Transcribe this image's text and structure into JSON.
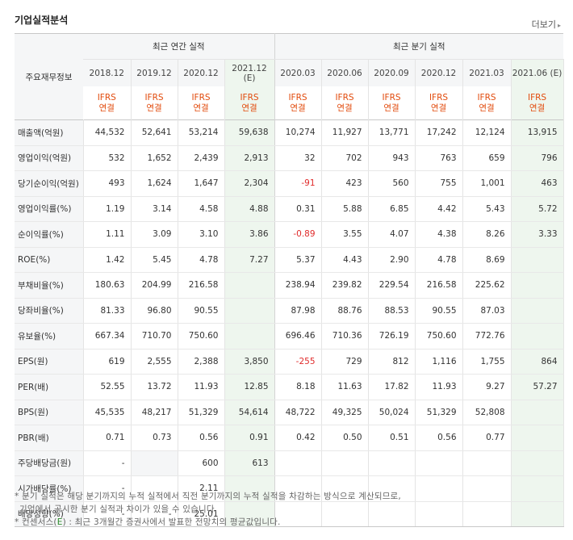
{
  "header": {
    "title": "기업실적분석",
    "more": "더보기"
  },
  "table": {
    "row_header": "주요재무정보",
    "annual_title": "최근 연간 실적",
    "quarter_title": "최근 분기 실적",
    "periods": [
      {
        "label": "2018.12",
        "est": false
      },
      {
        "label": "2019.12",
        "est": false
      },
      {
        "label": "2020.12",
        "est": false
      },
      {
        "label": "2021.12 (E)",
        "est": true
      },
      {
        "label": "2020.03",
        "est": false
      },
      {
        "label": "2020.06",
        "est": false
      },
      {
        "label": "2020.09",
        "est": false
      },
      {
        "label": "2020.12",
        "est": false
      },
      {
        "label": "2021.03",
        "est": false
      },
      {
        "label": "2021.06 (E)",
        "est": true
      }
    ],
    "ifrs_line1": "IFRS",
    "ifrs_line2": "연결",
    "rows": [
      {
        "label": "매출액(억원)",
        "values": [
          "44,532",
          "52,641",
          "53,214",
          "59,638",
          "10,274",
          "11,927",
          "13,771",
          "17,242",
          "12,124",
          "13,915"
        ]
      },
      {
        "label": "영업이익(억원)",
        "values": [
          "532",
          "1,652",
          "2,439",
          "2,913",
          "32",
          "702",
          "943",
          "763",
          "659",
          "796"
        ]
      },
      {
        "label": "당기순이익(억원)",
        "values": [
          "493",
          "1,624",
          "1,647",
          "2,304",
          "-91",
          "423",
          "560",
          "755",
          "1,001",
          "463"
        ]
      },
      {
        "label": "영업이익률(%)",
        "values": [
          "1.19",
          "3.14",
          "4.58",
          "4.88",
          "0.31",
          "5.88",
          "6.85",
          "4.42",
          "5.43",
          "5.72"
        ]
      },
      {
        "label": "순이익률(%)",
        "values": [
          "1.11",
          "3.09",
          "3.10",
          "3.86",
          "-0.89",
          "3.55",
          "4.07",
          "4.38",
          "8.26",
          "3.33"
        ]
      },
      {
        "label": "ROE(%)",
        "values": [
          "1.42",
          "5.45",
          "4.78",
          "7.27",
          "5.37",
          "4.43",
          "2.90",
          "4.78",
          "8.69",
          ""
        ]
      },
      {
        "label": "부채비율(%)",
        "values": [
          "180.63",
          "204.99",
          "216.58",
          "",
          "238.94",
          "239.82",
          "229.54",
          "216.58",
          "225.62",
          ""
        ]
      },
      {
        "label": "당좌비율(%)",
        "values": [
          "81.33",
          "96.80",
          "90.55",
          "",
          "87.98",
          "88.76",
          "88.53",
          "90.55",
          "87.03",
          ""
        ]
      },
      {
        "label": "유보율(%)",
        "values": [
          "667.34",
          "710.70",
          "750.60",
          "",
          "696.46",
          "710.36",
          "726.19",
          "750.60",
          "772.76",
          ""
        ]
      },
      {
        "label": "EPS(원)",
        "values": [
          "619",
          "2,555",
          "2,388",
          "3,850",
          "-255",
          "729",
          "812",
          "1,116",
          "1,755",
          "864"
        ]
      },
      {
        "label": "PER(배)",
        "values": [
          "52.55",
          "13.72",
          "11.93",
          "12.85",
          "8.18",
          "11.63",
          "17.82",
          "11.93",
          "9.27",
          "57.27"
        ]
      },
      {
        "label": "BPS(원)",
        "values": [
          "45,535",
          "48,217",
          "51,329",
          "54,614",
          "48,722",
          "49,325",
          "50,024",
          "51,329",
          "52,808",
          ""
        ]
      },
      {
        "label": "PBR(배)",
        "values": [
          "0.71",
          "0.73",
          "0.56",
          "0.91",
          "0.42",
          "0.50",
          "0.51",
          "0.56",
          "0.77",
          ""
        ]
      },
      {
        "label": "주당배당금(원)",
        "values": [
          "-",
          "",
          "600",
          "613",
          "",
          "",
          "",
          "",
          "",
          ""
        ]
      },
      {
        "label": "시가배당률(%)",
        "values": [
          "-",
          "",
          "2.11",
          "",
          "",
          "",
          "",
          "",
          "",
          ""
        ]
      },
      {
        "label": "배당성향(%)",
        "values": [
          "-",
          "-",
          "25.01",
          "",
          "",
          "",
          "",
          "",
          "",
          ""
        ]
      }
    ]
  },
  "notes": {
    "line1": "* 분기 실적은 해당 분기까지의 누적 실적에서 직전 분기까지의 누적 실적을 차감하는 방식으로 계산되므로,",
    "line2": "기업에서 공시한 분기 실적과 차이가 있을 수 있습니다.",
    "line3_prefix": "* 컨센서스(",
    "line3_e": "E",
    "line3_suffix": ") : 최근 3개월간 증권사에서 발표한 전망치의 평균값입니다."
  }
}
